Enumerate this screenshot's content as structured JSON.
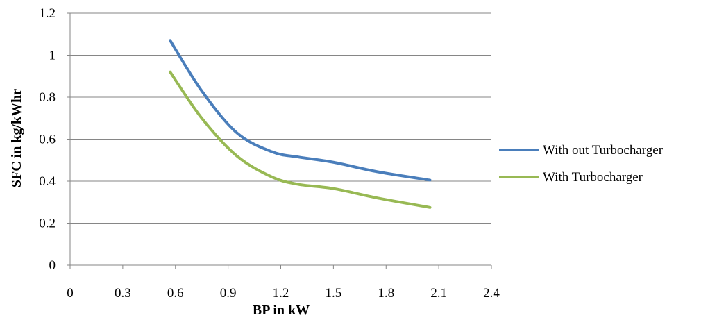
{
  "chart_data": {
    "type": "line",
    "title": "",
    "xlabel": "BP in kW",
    "ylabel": "SFC in kg/kWhr",
    "xlim": [
      0,
      2.4
    ],
    "ylim": [
      0,
      1.2
    ],
    "x_ticks": [
      "0",
      "0.3",
      "0.6",
      "0.9",
      "1.2",
      "1.5",
      "1.8",
      "2.1",
      "2.4"
    ],
    "y_ticks": [
      "0",
      "0.2",
      "0.4",
      "0.6",
      "0.8",
      "1",
      "1.2"
    ],
    "grid": "horizontal",
    "legend": "right",
    "series": [
      {
        "name": "With out Turbocharger",
        "color": "#4a7ebb",
        "x": [
          0.57,
          0.75,
          0.95,
          1.15,
          1.3,
          1.5,
          1.75,
          2.05
        ],
        "y": [
          1.07,
          0.83,
          0.63,
          0.54,
          0.515,
          0.49,
          0.445,
          0.405
        ]
      },
      {
        "name": "With Turbocharger",
        "color": "#98b954",
        "x": [
          0.57,
          0.75,
          0.95,
          1.15,
          1.3,
          1.5,
          1.75,
          2.05
        ],
        "y": [
          0.92,
          0.7,
          0.52,
          0.42,
          0.385,
          0.365,
          0.32,
          0.275
        ]
      }
    ]
  }
}
